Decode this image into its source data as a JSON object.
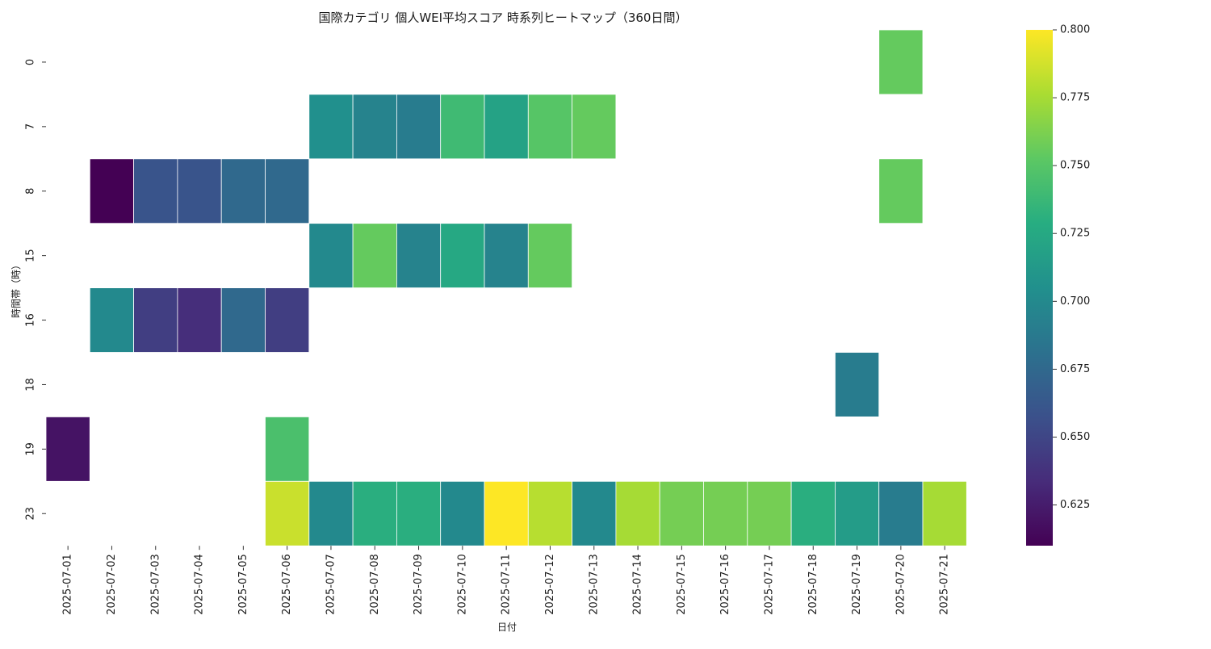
{
  "chart_data": {
    "type": "heatmap",
    "title": "国際カテゴリ 個人WEI平均スコア 時系列ヒートマップ（360日間）",
    "xlabel": "日付",
    "ylabel": "時間帯（時）",
    "x": [
      "2025-07-01",
      "2025-07-02",
      "2025-07-03",
      "2025-07-04",
      "2025-07-05",
      "2025-07-06",
      "2025-07-07",
      "2025-07-08",
      "2025-07-09",
      "2025-07-10",
      "2025-07-11",
      "2025-07-12",
      "2025-07-13",
      "2025-07-14",
      "2025-07-15",
      "2025-07-16",
      "2025-07-17",
      "2025-07-18",
      "2025-07-19",
      "2025-07-20",
      "2025-07-21"
    ],
    "y": [
      "0",
      "7",
      "8",
      "15",
      "16",
      "18",
      "19",
      "23"
    ],
    "values": [
      [
        null,
        null,
        null,
        null,
        null,
        null,
        null,
        null,
        null,
        null,
        null,
        null,
        null,
        null,
        null,
        null,
        null,
        null,
        null,
        0.755,
        null
      ],
      [
        null,
        null,
        null,
        null,
        null,
        null,
        0.705,
        0.695,
        0.69,
        0.74,
        0.72,
        0.75,
        0.755,
        null,
        null,
        null,
        null,
        null,
        null,
        null,
        null
      ],
      [
        null,
        0.61,
        0.66,
        0.66,
        0.675,
        0.675,
        null,
        null,
        null,
        null,
        null,
        null,
        null,
        null,
        null,
        null,
        null,
        null,
        null,
        0.755,
        null
      ],
      [
        null,
        null,
        null,
        null,
        null,
        null,
        0.7,
        0.755,
        0.695,
        0.725,
        0.695,
        0.755,
        null,
        null,
        null,
        null,
        null,
        null,
        null,
        null,
        null
      ],
      [
        null,
        0.7,
        0.645,
        0.635,
        0.675,
        0.645,
        null,
        null,
        null,
        null,
        null,
        null,
        null,
        null,
        null,
        null,
        null,
        null,
        null,
        null,
        null
      ],
      [
        null,
        null,
        null,
        null,
        null,
        null,
        null,
        null,
        null,
        null,
        null,
        null,
        null,
        null,
        null,
        null,
        null,
        null,
        0.69,
        null,
        null
      ],
      [
        0.62,
        null,
        null,
        null,
        null,
        0.745,
        null,
        null,
        null,
        null,
        null,
        null,
        null,
        null,
        null,
        null,
        null,
        null,
        null,
        null,
        null
      ],
      [
        null,
        null,
        null,
        null,
        null,
        0.785,
        0.7,
        0.73,
        0.73,
        0.7,
        0.8,
        0.78,
        0.7,
        0.775,
        0.76,
        0.76,
        0.76,
        0.73,
        0.715,
        0.69,
        0.775
      ]
    ],
    "colorbar": {
      "min": 0.61,
      "max": 0.8,
      "ticks": [
        "0.625",
        "0.650",
        "0.675",
        "0.700",
        "0.725",
        "0.750",
        "0.775",
        "0.800"
      ],
      "colormap": "viridis"
    },
    "grid": false,
    "legend": "colorbar-right"
  }
}
